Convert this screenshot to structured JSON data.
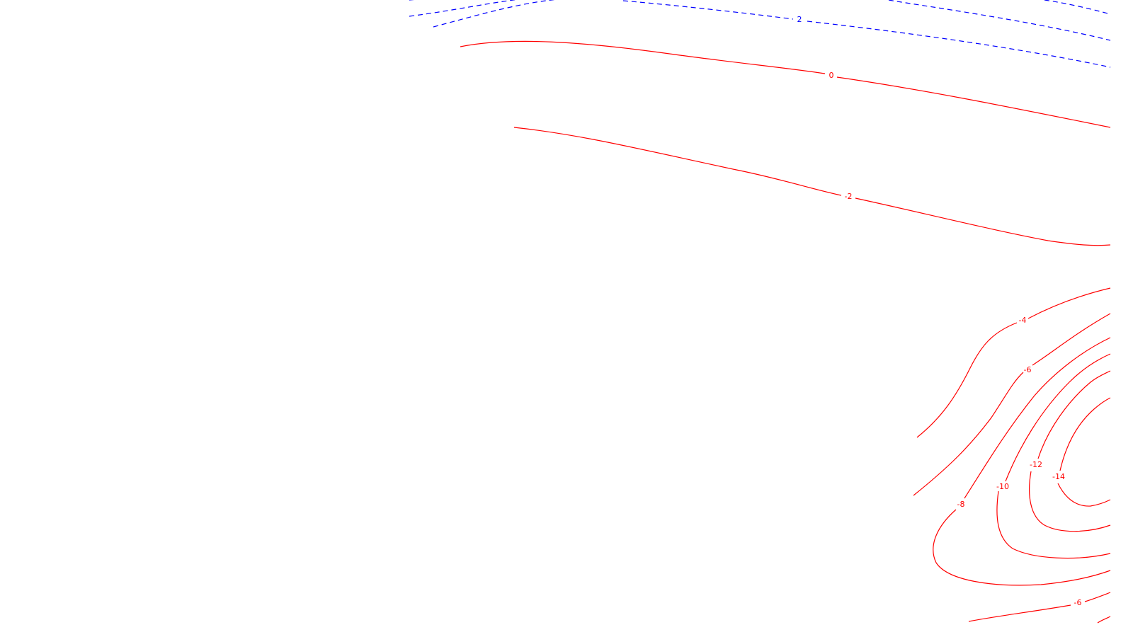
{
  "chart_data": {
    "type": "contour",
    "title": "",
    "xlabel": "",
    "ylabel": "",
    "grid": false,
    "legend": "none",
    "colors": {
      "positive": "#0000ff",
      "negative": "#ff0000",
      "zero": "#ff0000",
      "background": "#ffffff"
    },
    "negative_line_style": "solid",
    "positive_line_style": "dashed",
    "levels": [
      {
        "value": 2,
        "label": "2"
      },
      {
        "value": 0,
        "label": "0"
      },
      {
        "value": -2,
        "label": "-2"
      },
      {
        "value": -4,
        "label": "-4"
      },
      {
        "value": -6,
        "label": "-6"
      },
      {
        "value": -8,
        "label": "-8"
      },
      {
        "value": -10,
        "label": "-10"
      },
      {
        "value": -12,
        "label": "-12"
      },
      {
        "value": -14,
        "label": "-14"
      },
      {
        "value": -6,
        "label": "-6"
      }
    ]
  }
}
